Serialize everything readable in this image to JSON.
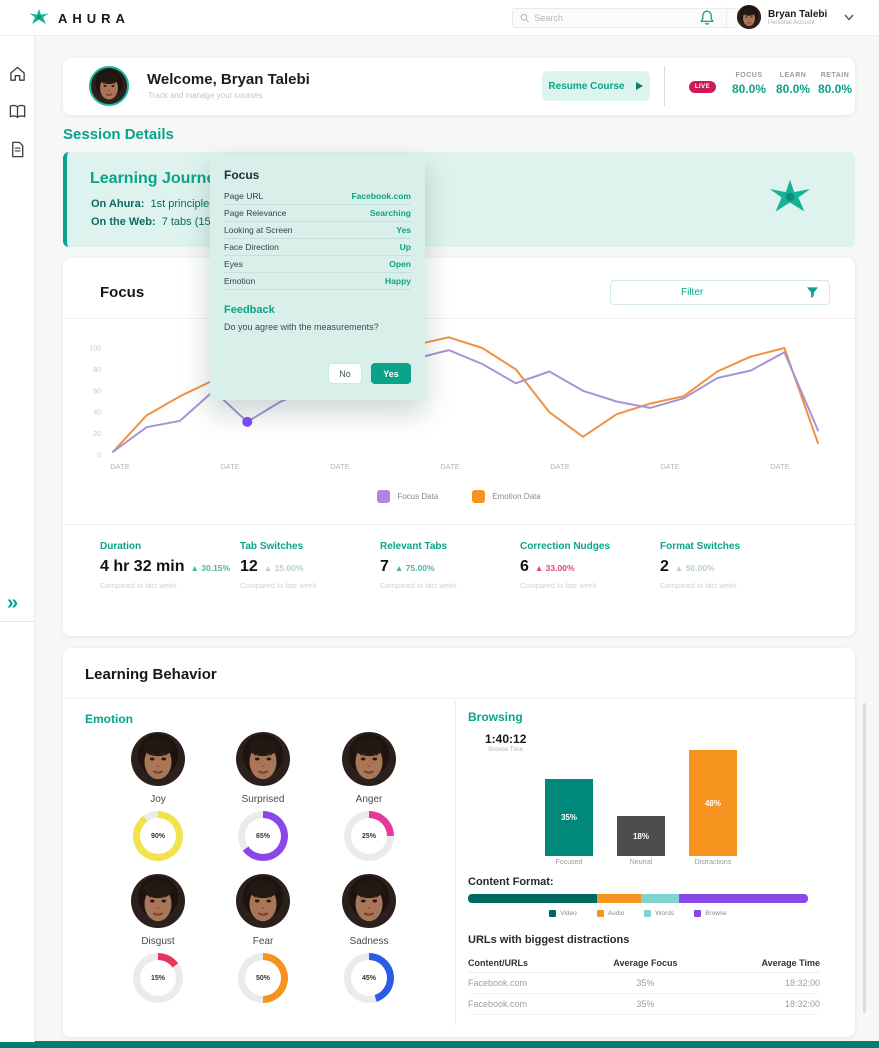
{
  "brand": {
    "name": "AHURA",
    "accent": "#0aa389"
  },
  "header": {
    "search_placeholder": "Search",
    "user_name": "Bryan Talebi",
    "user_role": "Personal Account"
  },
  "sidebar": {
    "icons": [
      "home",
      "courses",
      "reports"
    ],
    "expand": "»"
  },
  "welcome": {
    "title": "Welcome, Bryan Talebi",
    "subtitle": "Track and manage your courses",
    "resume_label": "Resume Course",
    "live": "LIVE",
    "metrics": [
      {
        "label": "FOCUS",
        "value": "80.0%"
      },
      {
        "label": "LEARN",
        "value": "80.0%"
      },
      {
        "label": "RETAIN",
        "value": "80.0%"
      }
    ]
  },
  "session": {
    "heading": "Session Details",
    "journey_title": "Learning Journey",
    "line1_label": "On Ahura:",
    "line1_value": "1st principles P",
    "line2_label": "On the Web:",
    "line2_value": "7 tabs (15 mi"
  },
  "popup": {
    "title": "Focus",
    "rows": [
      {
        "label": "Page URL",
        "value": "Facebook.com"
      },
      {
        "label": "Page Relevance",
        "value": "Searching"
      },
      {
        "label": "Looking at Screen",
        "value": "Yes"
      },
      {
        "label": "Face Direction",
        "value": "Up"
      },
      {
        "label": "Eyes",
        "value": "Open"
      },
      {
        "label": "Emotion",
        "value": "Happy"
      }
    ],
    "feedback_title": "Feedback",
    "question": "Do you agree with the measurements?",
    "no": "No",
    "yes": "Yes"
  },
  "focus_card": {
    "title": "Focus",
    "filter": "Filter",
    "stats": [
      {
        "label": "Duration",
        "value": "4 hr 32 min",
        "delta": "▲ 30.15%",
        "delta_color": "#4fb3a4",
        "note": "Compared to last week"
      },
      {
        "label": "Tab Switches",
        "value": "12",
        "delta": "▲ 15.00%",
        "delta_color": "#bccfca",
        "note": "Compared to last week"
      },
      {
        "label": "Relevant Tabs",
        "value": "7",
        "delta": "▲ 75.00%",
        "delta_color": "#4fb3a4",
        "note": "Compared to last week"
      },
      {
        "label": "Correction Nudges",
        "value": "6",
        "delta": "▲ 33.00%",
        "delta_color": "#e0447c",
        "note": "Compared to last week"
      },
      {
        "label": "Format Switches",
        "value": "2",
        "delta": "▲ 50.00%",
        "delta_color": "#bccfca",
        "note": "Compared to last week"
      }
    ]
  },
  "chart_data": {
    "type": "line",
    "title": "Focus",
    "xlabel": "",
    "ylabel": "",
    "ylim": [
      0,
      110
    ],
    "x_ticks": [
      "DATE",
      "DATE",
      "DATE",
      "DATE",
      "DATE",
      "DATE",
      "DATE"
    ],
    "y_ticks": [
      100,
      80,
      60,
      40,
      20,
      0
    ],
    "legend_position": "bottom",
    "grid": false,
    "series": [
      {
        "name": "Focus Data",
        "color": "#a793d6",
        "legend_color": "#b085e0",
        "values": [
          3,
          26,
          32,
          60,
          31,
          50,
          62,
          72,
          82,
          90,
          98,
          85,
          67,
          78,
          60,
          50,
          44,
          53,
          72,
          79,
          96,
          23
        ],
        "marker_index": 4,
        "marker_color": "#7c4dff"
      },
      {
        "name": "Emotion Data",
        "color": "#f0923f",
        "legend_color": "#f6921e",
        "values": [
          3,
          37,
          55,
          70,
          80,
          84,
          88,
          93,
          97,
          103,
          110,
          100,
          80,
          40,
          17,
          38,
          48,
          55,
          78,
          92,
          100,
          11
        ]
      }
    ]
  },
  "behavior": {
    "title": "Learning Behavior",
    "emotion": {
      "heading": "Emotion",
      "items": [
        {
          "name": "Joy",
          "pct": 90,
          "color": "#f2e24b"
        },
        {
          "name": "Surprised",
          "pct": 65,
          "color": "#8b46e8"
        },
        {
          "name": "Anger",
          "pct": 25,
          "color": "#e8389b"
        },
        {
          "name": "Disgust",
          "pct": 15,
          "color": "#e8355c"
        },
        {
          "name": "Fear",
          "pct": 50,
          "color": "#f6921e"
        },
        {
          "name": "Sadness",
          "pct": 45,
          "color": "#2b5ce6"
        }
      ]
    },
    "browsing": {
      "heading": "Browsing",
      "time": "1:40:12",
      "time_label": "Browse Time",
      "bars": [
        {
          "label": "Focused",
          "pct": 35,
          "color": "#00897b"
        },
        {
          "label": "Neutral",
          "pct": 18,
          "color": "#4d4d4d"
        },
        {
          "label": "Distractions",
          "pct": 48,
          "color": "#f6921e"
        }
      ],
      "content_format_label": "Content Format:",
      "format_segments": [
        {
          "label": "Video",
          "pct": 38,
          "color": "#00695f"
        },
        {
          "label": "Audio",
          "pct": 13,
          "color": "#f6921e"
        },
        {
          "label": "Words",
          "pct": 11,
          "color": "#7fd4cf"
        },
        {
          "label": "Browse",
          "pct": 38,
          "color": "#8b46e8"
        }
      ],
      "urls_heading": "URLs with biggest distractions",
      "table": {
        "headers": [
          "Content/URLs",
          "Average Focus",
          "Average Time"
        ],
        "rows": [
          [
            "Facebook.com",
            "35%",
            "18:32:00"
          ],
          [
            "Facebook.com",
            "35%",
            "18:32:00"
          ]
        ]
      }
    }
  }
}
